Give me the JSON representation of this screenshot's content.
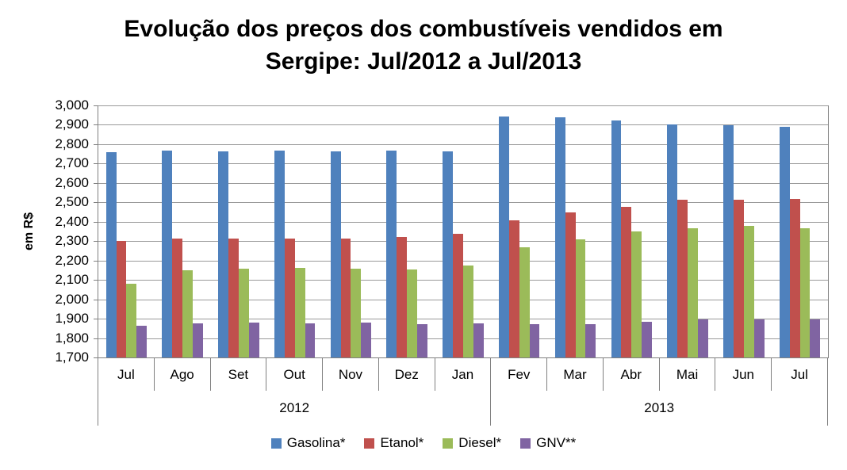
{
  "title": {
    "line1": "Evolução dos preços dos combustíveis vendidos em",
    "line2": "Sergipe: Jul/2012 a Jul/2013"
  },
  "y_axis": {
    "label": "em R$",
    "tick_labels": [
      "3,000",
      "2,900",
      "2,800",
      "2,700",
      "2,600",
      "2,500",
      "2,400",
      "2,300",
      "2,200",
      "2,100",
      "2,000",
      "1,900",
      "1,800",
      "1,700"
    ]
  },
  "x_axis": {
    "months": [
      "Jul",
      "Ago",
      "Set",
      "Out",
      "Nov",
      "Dez",
      "Jan",
      "Fev",
      "Mar",
      "Abr",
      "Mai",
      "Jun",
      "Jul"
    ],
    "year_groups": [
      {
        "label": "2012",
        "count": 7
      },
      {
        "label": "2013",
        "count": 6
      }
    ]
  },
  "legend": {
    "items": [
      {
        "label": "Gasolina*",
        "color": "#4F81BD"
      },
      {
        "label": "Etanol*",
        "color": "#C0504D"
      },
      {
        "label": "Diesel*",
        "color": "#9BBB59"
      },
      {
        "label": "GNV**",
        "color": "#8064A2"
      }
    ]
  },
  "colors": {
    "gridline": "#9a9a9a",
    "axis": "#808080",
    "gasolina": "#4F81BD",
    "etanol": "#C0504D",
    "diesel": "#9BBB59",
    "gnv": "#8064A2"
  },
  "chart_data": {
    "type": "bar",
    "title": "Evolução dos preços dos combustíveis vendidos em Sergipe: Jul/2012 a Jul/2013",
    "xlabel": "",
    "ylabel": "em R$",
    "ylim": [
      1700,
      3000
    ],
    "ytick_step": 100,
    "grid": true,
    "legend_position": "bottom",
    "categories": [
      "Jul",
      "Ago",
      "Set",
      "Out",
      "Nov",
      "Dez",
      "Jan",
      "Fev",
      "Mar",
      "Abr",
      "Mai",
      "Jun",
      "Jul"
    ],
    "category_groups": [
      {
        "label": "2012",
        "categories": [
          "Jul",
          "Ago",
          "Set",
          "Out",
          "Nov",
          "Dez",
          "Jan"
        ]
      },
      {
        "label": "2013",
        "categories": [
          "Fev",
          "Mar",
          "Abr",
          "Mai",
          "Jun",
          "Jul"
        ]
      }
    ],
    "series": [
      {
        "name": "Gasolina*",
        "color": "#4F81BD",
        "values": [
          2760,
          2768,
          2764,
          2767,
          2765,
          2766,
          2762,
          2941,
          2937,
          2922,
          2903,
          2896,
          2891
        ]
      },
      {
        "name": "Etanol*",
        "color": "#C0504D",
        "values": [
          2300,
          2314,
          2313,
          2313,
          2314,
          2322,
          2337,
          2407,
          2450,
          2475,
          2513,
          2512,
          2518
        ]
      },
      {
        "name": "Diesel*",
        "color": "#9BBB59",
        "values": [
          2080,
          2150,
          2158,
          2162,
          2158,
          2156,
          2174,
          2268,
          2310,
          2350,
          2368,
          2378,
          2368
        ]
      },
      {
        "name": "GNV**",
        "color": "#8064A2",
        "values": [
          1865,
          1876,
          1880,
          1877,
          1879,
          1870,
          1876,
          1872,
          1873,
          1884,
          1898,
          1898,
          1898
        ]
      }
    ]
  }
}
